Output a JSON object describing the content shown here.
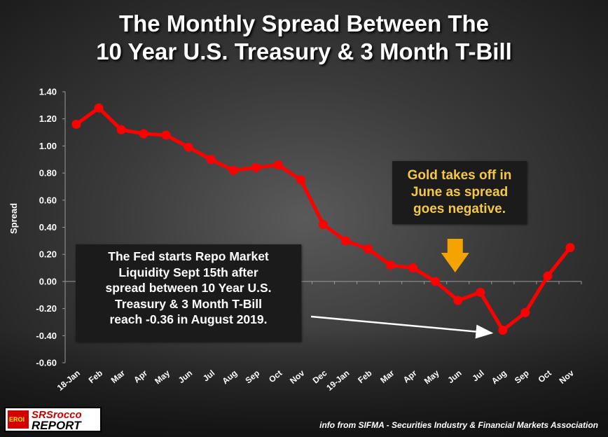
{
  "title_lines": [
    "The Monthly Spread Between The",
    "10 Year U.S. Treasury & 3 Month T-Bill"
  ],
  "chart_data": {
    "type": "line",
    "title": "The Monthly Spread Between The 10 Year U.S. Treasury & 3 Month T-Bill",
    "ylabel": "Spread",
    "xlabel": "",
    "ylim": [
      -0.6,
      1.4
    ],
    "y_ticks": [
      "1.40",
      "1.20",
      "1.00",
      "0.80",
      "0.60",
      "0.40",
      "0.20",
      "0.00",
      "-0.20",
      "-0.40",
      "-0.60"
    ],
    "y_tick_values": [
      1.4,
      1.2,
      1.0,
      0.8,
      0.6,
      0.4,
      0.2,
      0.0,
      -0.2,
      -0.4,
      -0.6
    ],
    "categories": [
      "18-Jan",
      "Feb",
      "Mar",
      "Apr",
      "May",
      "Jun",
      "Jul",
      "Aug",
      "Sep",
      "Oct",
      "Nov",
      "Dec",
      "19-Jan",
      "Feb",
      "Mar",
      "Apr",
      "May",
      "Jun",
      "Jul",
      "Aug",
      "Sep",
      "Oct",
      "Nov"
    ],
    "series": [
      {
        "values": [
          1.16,
          1.28,
          1.12,
          1.09,
          1.08,
          0.99,
          0.9,
          0.82,
          0.84,
          0.86,
          0.75,
          0.42,
          0.3,
          0.24,
          0.12,
          0.1,
          0.0,
          -0.14,
          -0.08,
          -0.36,
          -0.23,
          0.04,
          0.25
        ],
        "color": "#ff0000"
      }
    ],
    "grid": false,
    "annotations": [
      {
        "lines": [
          "The Fed starts Repo Market",
          "Liquidity Sept 15th after",
          "spread between 10 Year U.S.",
          "Treasury & 3 Month T-Bill",
          "reach -0.36 in August 2019."
        ],
        "points_to": "Aug",
        "color": "#ffffff"
      },
      {
        "lines": [
          "Gold takes off in",
          "June as spread",
          "goes negative."
        ],
        "points_to": "Jun",
        "color": "#f5c842"
      }
    ],
    "arrow_color": "#f5a300"
  },
  "logo": {
    "icon_text": "EROI",
    "top": "SRSrocco",
    "bottom": "REPORT"
  },
  "source": "info from SIFMA - Securities Industry & Financial Markets Association"
}
